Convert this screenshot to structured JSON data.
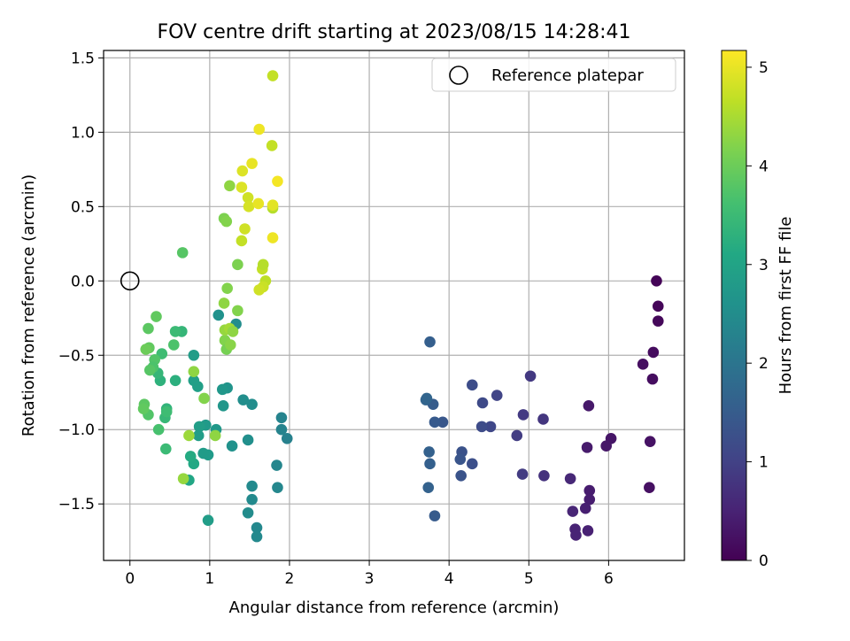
{
  "chart_data": {
    "type": "scatter",
    "title": "FOV centre drift starting at 2023/08/15 14:28:41",
    "xlabel": "Angular distance from reference (arcmin)",
    "ylabel": "Rotation from reference (arcmin)",
    "xlim": [
      -0.33,
      6.95
    ],
    "ylim": [
      -1.88,
      1.55
    ],
    "xticks": [
      "0",
      "1",
      "2",
      "3",
      "4",
      "5",
      "6"
    ],
    "xtick_values": [
      0,
      1,
      2,
      3,
      4,
      5,
      6
    ],
    "yticks": [
      "1.5",
      "1.0",
      "0.5",
      "0.0",
      "−0.5",
      "−1.0",
      "−1.5"
    ],
    "ytick_values": [
      1.5,
      1.0,
      0.5,
      0.0,
      -0.5,
      -1.0,
      -1.5
    ],
    "grid": true,
    "legend": {
      "location": "upper right",
      "label": "Reference platepar"
    },
    "reference_point": {
      "x": 0.0,
      "y": 0.0
    },
    "colorbar": {
      "label": "Hours from first FF file",
      "colormap": "viridis",
      "range": [
        0,
        5.17
      ],
      "ticks": [
        "0",
        "1",
        "2",
        "3",
        "4",
        "5"
      ],
      "tick_values": [
        0,
        1,
        2,
        3,
        4,
        5
      ]
    },
    "points": [
      {
        "x": 6.6,
        "y": 0.0,
        "h": 0.05
      },
      {
        "x": 6.62,
        "y": -0.17,
        "h": 0.08
      },
      {
        "x": 6.62,
        "y": -0.27,
        "h": 0.1
      },
      {
        "x": 6.56,
        "y": -0.48,
        "h": 0.15
      },
      {
        "x": 6.43,
        "y": -0.56,
        "h": 0.2
      },
      {
        "x": 6.55,
        "y": -0.66,
        "h": 0.18
      },
      {
        "x": 6.52,
        "y": -1.08,
        "h": 0.25
      },
      {
        "x": 6.51,
        "y": -1.39,
        "h": 0.22
      },
      {
        "x": 6.03,
        "y": -1.06,
        "h": 0.3
      },
      {
        "x": 5.97,
        "y": -1.11,
        "h": 0.32
      },
      {
        "x": 5.75,
        "y": -0.84,
        "h": 0.35
      },
      {
        "x": 5.73,
        "y": -1.12,
        "h": 0.38
      },
      {
        "x": 5.76,
        "y": -1.41,
        "h": 0.4
      },
      {
        "x": 5.76,
        "y": -1.47,
        "h": 0.42
      },
      {
        "x": 5.71,
        "y": -1.53,
        "h": 0.45
      },
      {
        "x": 5.74,
        "y": -1.68,
        "h": 0.48
      },
      {
        "x": 5.58,
        "y": -1.67,
        "h": 0.5
      },
      {
        "x": 5.59,
        "y": -1.71,
        "h": 0.52
      },
      {
        "x": 5.55,
        "y": -1.55,
        "h": 0.55
      },
      {
        "x": 5.52,
        "y": -1.33,
        "h": 0.58
      },
      {
        "x": 5.19,
        "y": -1.31,
        "h": 0.75
      },
      {
        "x": 5.18,
        "y": -0.93,
        "h": 0.8
      },
      {
        "x": 5.02,
        "y": -0.64,
        "h": 0.85
      },
      {
        "x": 4.93,
        "y": -0.9,
        "h": 0.88
      },
      {
        "x": 4.92,
        "y": -1.3,
        "h": 0.9
      },
      {
        "x": 4.85,
        "y": -1.04,
        "h": 0.92
      },
      {
        "x": 4.6,
        "y": -0.77,
        "h": 1.05
      },
      {
        "x": 4.52,
        "y": -0.98,
        "h": 1.1
      },
      {
        "x": 4.42,
        "y": -0.82,
        "h": 1.15
      },
      {
        "x": 4.41,
        "y": -0.98,
        "h": 1.18
      },
      {
        "x": 4.29,
        "y": -0.7,
        "h": 1.2
      },
      {
        "x": 4.29,
        "y": -1.23,
        "h": 1.25
      },
      {
        "x": 4.16,
        "y": -1.15,
        "h": 1.3
      },
      {
        "x": 4.15,
        "y": -1.31,
        "h": 1.32
      },
      {
        "x": 4.14,
        "y": -1.2,
        "h": 1.35
      },
      {
        "x": 3.92,
        "y": -0.95,
        "h": 1.4
      },
      {
        "x": 3.82,
        "y": -0.95,
        "h": 1.45
      },
      {
        "x": 3.82,
        "y": -1.58,
        "h": 1.48
      },
      {
        "x": 3.8,
        "y": -0.83,
        "h": 1.5
      },
      {
        "x": 3.76,
        "y": -0.41,
        "h": 1.55
      },
      {
        "x": 3.76,
        "y": -1.23,
        "h": 1.58
      },
      {
        "x": 3.75,
        "y": -1.15,
        "h": 1.6
      },
      {
        "x": 3.74,
        "y": -1.39,
        "h": 1.62
      },
      {
        "x": 3.71,
        "y": -0.8,
        "h": 1.65
      },
      {
        "x": 3.72,
        "y": -0.79,
        "h": 1.68
      },
      {
        "x": 1.97,
        "y": -1.06,
        "h": 2.25
      },
      {
        "x": 1.9,
        "y": -0.92,
        "h": 2.3
      },
      {
        "x": 1.9,
        "y": -1.0,
        "h": 2.3
      },
      {
        "x": 1.84,
        "y": -1.24,
        "h": 2.35
      },
      {
        "x": 1.85,
        "y": -1.39,
        "h": 2.38
      },
      {
        "x": 1.59,
        "y": -1.66,
        "h": 2.4
      },
      {
        "x": 1.59,
        "y": -1.72,
        "h": 2.42
      },
      {
        "x": 1.53,
        "y": -1.47,
        "h": 2.45
      },
      {
        "x": 1.53,
        "y": -1.38,
        "h": 2.45
      },
      {
        "x": 1.48,
        "y": -1.56,
        "h": 2.48
      },
      {
        "x": 1.53,
        "y": -0.83,
        "h": 2.5
      },
      {
        "x": 1.42,
        "y": -0.8,
        "h": 2.52
      },
      {
        "x": 1.48,
        "y": -1.07,
        "h": 2.55
      },
      {
        "x": 1.33,
        "y": -0.29,
        "h": 2.5
      },
      {
        "x": 1.28,
        "y": -1.11,
        "h": 2.6
      },
      {
        "x": 1.22,
        "y": -0.72,
        "h": 2.65
      },
      {
        "x": 1.17,
        "y": -0.84,
        "h": 2.7
      },
      {
        "x": 1.16,
        "y": -0.73,
        "h": 2.72
      },
      {
        "x": 1.11,
        "y": -0.23,
        "h": 2.6
      },
      {
        "x": 1.08,
        "y": -1.0,
        "h": 2.75
      },
      {
        "x": 0.98,
        "y": -1.17,
        "h": 2.8
      },
      {
        "x": 0.95,
        "y": -0.97,
        "h": 2.78
      },
      {
        "x": 0.92,
        "y": -1.16,
        "h": 2.82
      },
      {
        "x": 0.98,
        "y": -1.61,
        "h": 2.85
      },
      {
        "x": 0.87,
        "y": -0.98,
        "h": 2.88
      },
      {
        "x": 0.86,
        "y": -1.04,
        "h": 2.85
      },
      {
        "x": 0.85,
        "y": -0.71,
        "h": 2.9
      },
      {
        "x": 0.8,
        "y": -0.5,
        "h": 2.85
      },
      {
        "x": 0.8,
        "y": -0.67,
        "h": 2.9
      },
      {
        "x": 0.8,
        "y": -1.23,
        "h": 3.1
      },
      {
        "x": 0.76,
        "y": -1.18,
        "h": 3.15
      },
      {
        "x": 0.74,
        "y": -1.34,
        "h": 3.05
      },
      {
        "x": 0.65,
        "y": -0.34,
        "h": 3.4
      },
      {
        "x": 0.57,
        "y": -0.34,
        "h": 3.5
      },
      {
        "x": 0.57,
        "y": -0.67,
        "h": 3.25
      },
      {
        "x": 0.55,
        "y": -0.43,
        "h": 3.7
      },
      {
        "x": 0.46,
        "y": -0.86,
        "h": 3.35
      },
      {
        "x": 0.44,
        "y": -0.92,
        "h": 3.45
      },
      {
        "x": 0.46,
        "y": -0.88,
        "h": 3.55
      },
      {
        "x": 0.45,
        "y": -1.13,
        "h": 3.5
      },
      {
        "x": 0.4,
        "y": -0.49,
        "h": 3.55
      },
      {
        "x": 0.38,
        "y": -0.67,
        "h": 3.3
      },
      {
        "x": 0.35,
        "y": -0.62,
        "h": 3.4
      },
      {
        "x": 0.36,
        "y": -1.0,
        "h": 3.65
      },
      {
        "x": 0.33,
        "y": -0.24,
        "h": 3.9
      },
      {
        "x": 0.31,
        "y": -0.53,
        "h": 3.75
      },
      {
        "x": 0.29,
        "y": -0.58,
        "h": 3.7
      },
      {
        "x": 0.25,
        "y": -0.6,
        "h": 3.8
      },
      {
        "x": 0.24,
        "y": -0.45,
        "h": 3.9
      },
      {
        "x": 0.23,
        "y": -0.32,
        "h": 3.85
      },
      {
        "x": 0.2,
        "y": -0.46,
        "h": 4.0
      },
      {
        "x": 0.23,
        "y": -0.9,
        "h": 3.75
      },
      {
        "x": 0.18,
        "y": -0.83,
        "h": 3.85
      },
      {
        "x": 0.17,
        "y": -0.86,
        "h": 3.9
      },
      {
        "x": 0.66,
        "y": 0.19,
        "h": 3.8
      },
      {
        "x": 0.8,
        "y": -0.61,
        "h": 4.3
      },
      {
        "x": 0.93,
        "y": -0.79,
        "h": 4.2
      },
      {
        "x": 0.74,
        "y": -1.04,
        "h": 4.4
      },
      {
        "x": 0.67,
        "y": -1.33,
        "h": 4.35
      },
      {
        "x": 1.07,
        "y": -1.04,
        "h": 4.3
      },
      {
        "x": 1.19,
        "y": -0.4,
        "h": 4.2
      },
      {
        "x": 1.21,
        "y": -0.46,
        "h": 4.1
      },
      {
        "x": 1.26,
        "y": -0.43,
        "h": 4.25
      },
      {
        "x": 1.19,
        "y": -0.33,
        "h": 4.35
      },
      {
        "x": 1.25,
        "y": -0.32,
        "h": 4.45
      },
      {
        "x": 1.29,
        "y": -0.34,
        "h": 4.3
      },
      {
        "x": 1.35,
        "y": -0.2,
        "h": 4.2
      },
      {
        "x": 1.22,
        "y": -0.05,
        "h": 4.2
      },
      {
        "x": 1.18,
        "y": -0.15,
        "h": 4.3
      },
      {
        "x": 1.18,
        "y": 0.42,
        "h": 4.15
      },
      {
        "x": 1.21,
        "y": 0.4,
        "h": 4.2
      },
      {
        "x": 1.35,
        "y": 0.11,
        "h": 4.15
      },
      {
        "x": 1.25,
        "y": 0.64,
        "h": 4.3
      },
      {
        "x": 1.4,
        "y": 0.27,
        "h": 4.7
      },
      {
        "x": 1.44,
        "y": 0.35,
        "h": 4.8
      },
      {
        "x": 1.4,
        "y": 0.63,
        "h": 4.9
      },
      {
        "x": 1.41,
        "y": 0.74,
        "h": 4.9
      },
      {
        "x": 1.48,
        "y": 0.56,
        "h": 4.8
      },
      {
        "x": 1.49,
        "y": 0.5,
        "h": 4.85
      },
      {
        "x": 1.53,
        "y": 0.79,
        "h": 5.0
      },
      {
        "x": 1.62,
        "y": 1.02,
        "h": 5.05
      },
      {
        "x": 1.61,
        "y": 0.52,
        "h": 5.0
      },
      {
        "x": 1.66,
        "y": 0.08,
        "h": 4.7
      },
      {
        "x": 1.67,
        "y": 0.11,
        "h": 4.6
      },
      {
        "x": 1.7,
        "y": 0.0,
        "h": 4.65
      },
      {
        "x": 1.67,
        "y": -0.04,
        "h": 4.75
      },
      {
        "x": 1.62,
        "y": -0.06,
        "h": 4.8
      },
      {
        "x": 1.78,
        "y": 0.91,
        "h": 4.7
      },
      {
        "x": 1.79,
        "y": 0.49,
        "h": 4.6
      },
      {
        "x": 1.79,
        "y": 0.51,
        "h": 4.95
      },
      {
        "x": 1.79,
        "y": 0.29,
        "h": 5.05
      },
      {
        "x": 1.85,
        "y": 0.67,
        "h": 5.1
      },
      {
        "x": 1.79,
        "y": 1.38,
        "h": 4.7
      }
    ]
  }
}
